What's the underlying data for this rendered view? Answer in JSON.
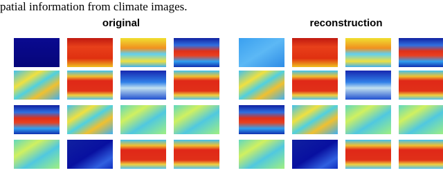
{
  "caption_fragment": "patial information from climate images.",
  "panels": {
    "left_title": "original",
    "right_title": "reconstruction"
  }
}
